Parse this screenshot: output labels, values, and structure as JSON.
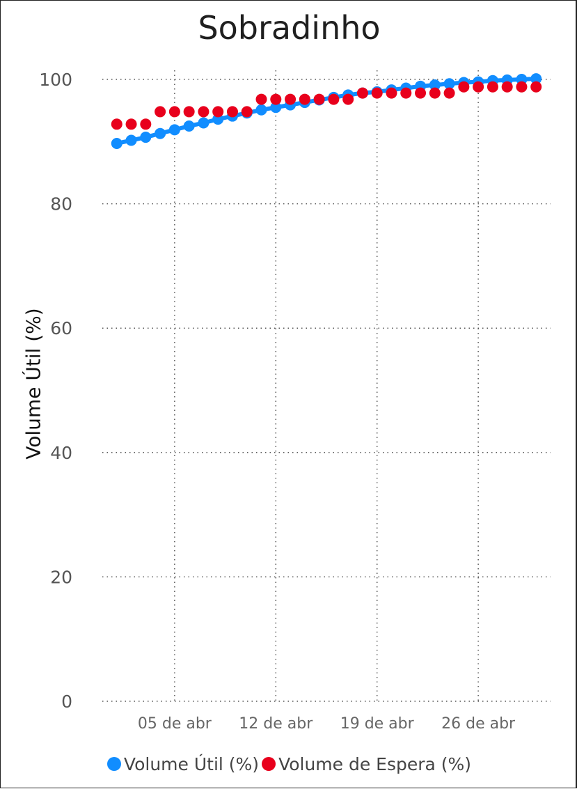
{
  "chart_data": {
    "type": "line",
    "title": "Sobradinho",
    "xlabel": "",
    "ylabel": "Volume Útil (%)",
    "x_tick_labels": [
      "05 de abr",
      "12 de abr",
      "19 de abr",
      "26 de abr"
    ],
    "x_tick_days": [
      5,
      12,
      19,
      26
    ],
    "xlim": [
      0,
      31
    ],
    "ylim": [
      0,
      100
    ],
    "y_ticks": [
      0,
      20,
      40,
      60,
      80,
      100
    ],
    "grid": true,
    "legend_position": "bottom",
    "x": [
      1,
      2,
      3,
      4,
      5,
      6,
      7,
      8,
      9,
      10,
      11,
      12,
      13,
      14,
      15,
      16,
      17,
      18,
      19,
      20,
      21,
      22,
      23,
      24,
      25,
      26,
      27,
      28,
      29,
      30
    ],
    "series": [
      {
        "name": "Volume Útil (%)",
        "color": "#118DFF",
        "style": "line-markers",
        "values": [
          89.7,
          90.2,
          90.7,
          91.3,
          91.9,
          92.5,
          93.0,
          93.6,
          94.1,
          94.6,
          95.1,
          95.5,
          95.9,
          96.3,
          96.7,
          97.1,
          97.5,
          97.8,
          98.0,
          98.3,
          98.6,
          98.9,
          99.1,
          99.3,
          99.5,
          99.6,
          99.8,
          99.9,
          100.0,
          100.1
        ]
      },
      {
        "name": "Volume de Espera (%)",
        "color": "#E8001C",
        "style": "markers",
        "values": [
          92.8,
          92.8,
          92.8,
          94.8,
          94.8,
          94.8,
          94.8,
          94.8,
          94.8,
          94.8,
          96.8,
          96.8,
          96.8,
          96.8,
          96.8,
          96.8,
          96.8,
          97.8,
          97.8,
          97.8,
          97.8,
          97.8,
          97.8,
          97.8,
          98.8,
          98.8,
          98.8,
          98.8,
          98.8,
          98.8
        ]
      }
    ]
  }
}
